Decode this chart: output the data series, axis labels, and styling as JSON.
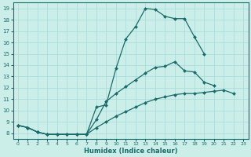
{
  "xlabel": "Humidex (Indice chaleur)",
  "bg_color": "#cceee8",
  "grid_color": "#aadddd",
  "line_color": "#1a6b6b",
  "marker": "D",
  "markersize": 2.0,
  "linewidth": 0.9,
  "xlim": [
    -0.5,
    23.5
  ],
  "ylim": [
    7.5,
    19.5
  ],
  "xticks": [
    0,
    1,
    2,
    3,
    4,
    5,
    6,
    7,
    8,
    9,
    10,
    11,
    12,
    13,
    14,
    15,
    16,
    17,
    18,
    19,
    20,
    21,
    22,
    23
  ],
  "yticks": [
    8,
    9,
    10,
    11,
    12,
    13,
    14,
    15,
    16,
    17,
    18,
    19
  ],
  "series1_x": [
    0,
    1,
    2,
    3,
    4,
    5,
    6,
    7,
    8,
    9,
    10,
    11,
    12,
    13,
    14,
    15,
    16,
    17,
    18,
    19
  ],
  "series1_y": [
    8.7,
    8.5,
    8.1,
    7.9,
    7.9,
    7.9,
    7.9,
    7.9,
    10.3,
    10.5,
    13.7,
    16.3,
    17.4,
    19.0,
    18.9,
    18.3,
    18.1,
    18.1,
    16.5,
    15.0
  ],
  "series2_x": [
    0,
    1,
    2,
    3,
    4,
    5,
    6,
    7,
    8,
    9,
    10,
    11,
    12,
    13,
    14,
    15,
    16,
    17,
    18,
    19,
    20,
    21
  ],
  "series2_y": [
    8.7,
    8.5,
    8.1,
    7.9,
    7.9,
    7.9,
    7.9,
    7.9,
    9.2,
    10.8,
    11.5,
    12.1,
    12.7,
    13.3,
    13.8,
    13.9,
    14.3,
    13.5,
    13.4,
    12.5,
    12.2,
    null
  ],
  "series3_x": [
    0,
    1,
    2,
    3,
    4,
    5,
    6,
    7,
    8,
    9,
    10,
    11,
    12,
    13,
    14,
    15,
    16,
    17,
    18,
    19,
    20,
    21,
    22
  ],
  "series3_y": [
    8.7,
    8.5,
    8.1,
    7.9,
    7.9,
    7.9,
    7.9,
    7.9,
    8.5,
    9.0,
    9.5,
    9.9,
    10.3,
    10.7,
    11.0,
    11.2,
    11.4,
    11.5,
    11.5,
    11.6,
    11.7,
    11.8,
    11.5
  ]
}
